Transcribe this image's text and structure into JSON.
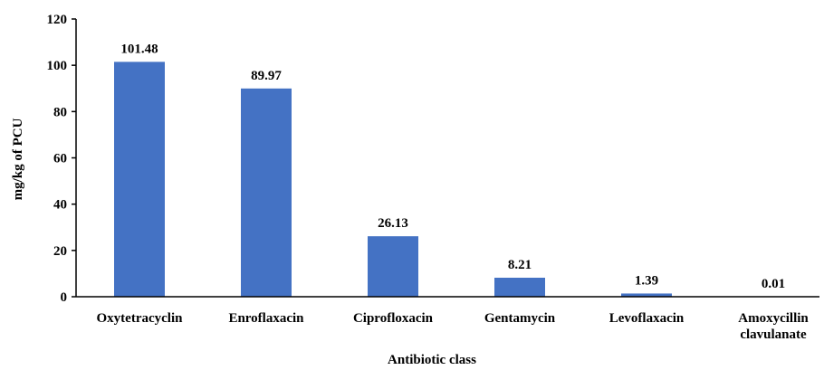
{
  "chart_data": {
    "type": "bar",
    "categories": [
      "Oxytetracyclin",
      "Enroflaxacin",
      "Ciprofloxacin",
      "Gentamycin",
      "Levoflaxacin",
      "Amoxycillin clavulanate"
    ],
    "values": [
      101.48,
      89.97,
      26.13,
      8.21,
      1.39,
      0.01
    ],
    "color": "#4472c4",
    "x_label": "Antibiotic class",
    "y_label": "mg/kg of PCU",
    "ylim": [
      0,
      120
    ],
    "yticks": [
      0,
      20,
      40,
      60,
      80,
      100,
      120
    ],
    "grid": false
  }
}
